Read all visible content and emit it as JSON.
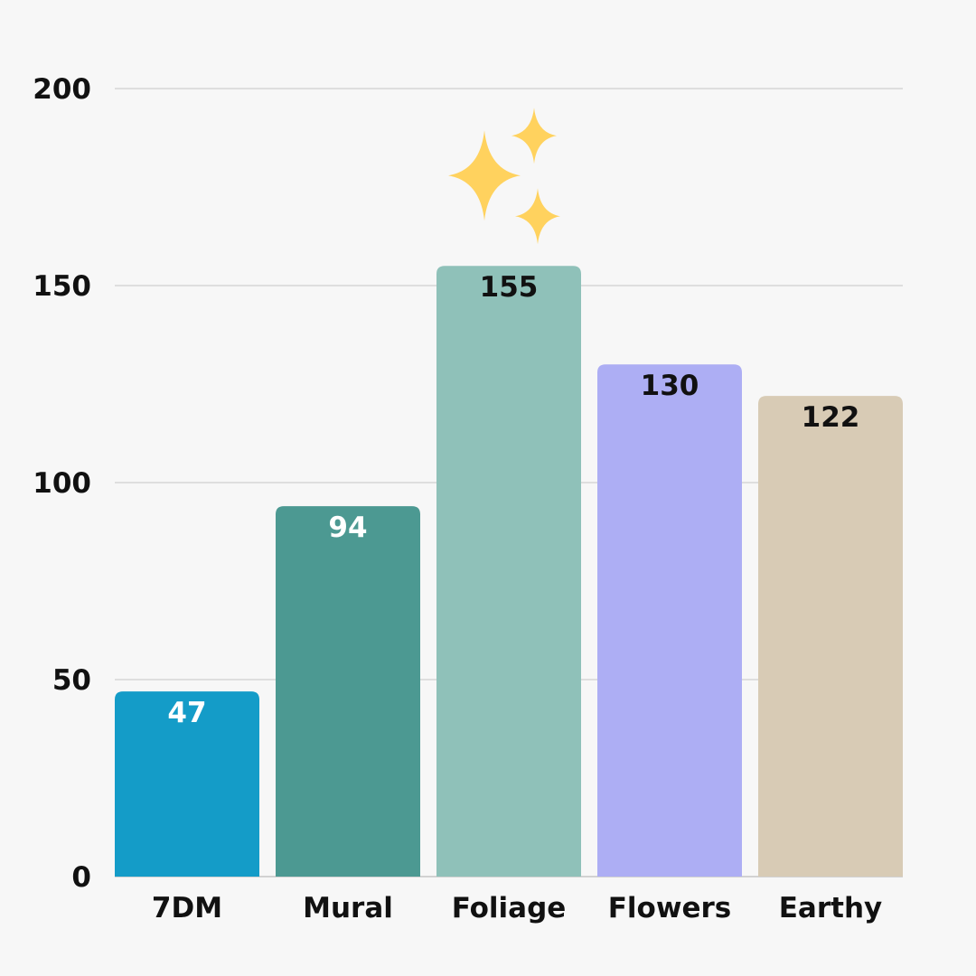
{
  "chart_data": {
    "type": "bar",
    "title": "",
    "xlabel": "",
    "ylabel": "",
    "categories": [
      "7DM",
      "Mural",
      "Foliage",
      "Flowers",
      "Earthy"
    ],
    "values": [
      47,
      94,
      155,
      130,
      122
    ],
    "data_labels": [
      "47",
      "94",
      "155",
      "130",
      "122"
    ],
    "bar_colors": [
      "#149cc8",
      "#4c9992",
      "#8fc1b9",
      "#adaef4",
      "#d8cbb5"
    ],
    "label_colors": [
      "#ffffff",
      "#ffffff",
      "#111111",
      "#111111",
      "#111111"
    ],
    "ylim": [
      0,
      200
    ],
    "yticks": [
      0,
      50,
      100,
      150,
      200
    ],
    "ytick_labels": [
      "0",
      "50",
      "100",
      "150",
      "200"
    ],
    "grid": true,
    "legend": "none",
    "annotation": {
      "icon": "sparkles-icon",
      "category": "Foliage",
      "color": "#ffd25e"
    }
  }
}
